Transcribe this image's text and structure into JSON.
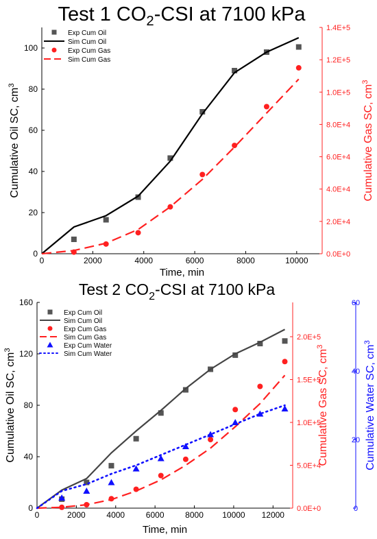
{
  "chart_data": [
    {
      "type": "scatter",
      "title": "Test 1 CO₂-CSI at 7100 kPa",
      "title_parts": {
        "pre": "Test 1 CO",
        "sub": "2",
        "post": "-CSI at 7100 kPa"
      },
      "xlabel": "Time, min",
      "ylabel": "Cumulative Oil SC, cm³",
      "y2label": "Cumulative Gas SC, cm³",
      "xlim": [
        0,
        11000
      ],
      "ylim": [
        0,
        110
      ],
      "y2lim": [
        0,
        140000
      ],
      "x_ticks": [
        "0",
        "2000",
        "4000",
        "6000",
        "8000",
        "10000"
      ],
      "y_ticks": [
        "0",
        "20",
        "40",
        "60",
        "80",
        "100"
      ],
      "y2_ticks": [
        "0.0E+0",
        "2.0E+4",
        "4.0E+4",
        "6.0E+4",
        "8.0E+4",
        "1.0E+5",
        "1.2E+5",
        "1.4E+5"
      ],
      "legend_position": "top-left",
      "colors": {
        "oil": "#000000",
        "exp_oil": "#555555",
        "gas": "#ff2020",
        "y2_axis": "#ff2020"
      },
      "series": [
        {
          "name": "Exp Cum Oil",
          "axis": "left",
          "style": "square-marker",
          "x": [
            1260,
            2520,
            3780,
            5040,
            6300,
            7560,
            8820,
            10080
          ],
          "y": [
            7,
            16.5,
            27.5,
            46.5,
            69,
            89,
            98,
            100.5
          ]
        },
        {
          "name": "Sim Cum Oil",
          "axis": "left",
          "style": "solid-line",
          "x": [
            0,
            1260,
            2520,
            3780,
            5040,
            6300,
            7560,
            8820,
            10080
          ],
          "y": [
            0,
            13,
            18.5,
            28,
            45,
            68,
            88,
            98,
            105
          ]
        },
        {
          "name": "Exp Cum Gas",
          "axis": "right",
          "style": "circle-marker",
          "x": [
            1260,
            2520,
            3780,
            5040,
            6300,
            7560,
            8820,
            10080
          ],
          "y": [
            1000,
            6000,
            13000,
            29000,
            49000,
            67000,
            91000,
            115000
          ]
        },
        {
          "name": "Sim Cum Gas",
          "axis": "right",
          "style": "dashed-line",
          "x": [
            0,
            1260,
            2520,
            3780,
            5040,
            6300,
            7560,
            8820,
            10080
          ],
          "y": [
            0,
            2000,
            6500,
            15000,
            29000,
            46000,
            66000,
            87000,
            108000
          ]
        }
      ]
    },
    {
      "type": "scatter",
      "title": "Test 2 CO₂-CSI at 7100 kPa",
      "title_parts": {
        "pre": "Test 2 CO",
        "sub": "2",
        "post": "-CSI at 7100 kPa"
      },
      "xlabel": "Time, min",
      "ylabel": "Cumulative Oil SC, cm³",
      "y2label": "Cumulative Gas SC, cm³",
      "y3label": "Cumulative Water SC, cm³",
      "xlim": [
        0,
        13000
      ],
      "ylim": [
        0,
        160
      ],
      "y2lim": [
        0,
        240000
      ],
      "y3lim": [
        0,
        60
      ],
      "x_ticks": [
        "0",
        "2000",
        "4000",
        "6000",
        "8000",
        "10000",
        "12000"
      ],
      "y_ticks": [
        "0",
        "40",
        "80",
        "120",
        "160"
      ],
      "y2_ticks": [
        "0.0E+0",
        "5.0E+4",
        "1.0E+5",
        "1.5E+5",
        "2.0E+5"
      ],
      "y3_ticks": [
        "0",
        "20",
        "40",
        "60"
      ],
      "legend_position": "top-left",
      "colors": {
        "oil": "#444444",
        "exp_oil": "#555555",
        "gas": "#ff2020",
        "water": "#1010ff",
        "y2_axis": "#ff2020",
        "y3_axis": "#1010ff"
      },
      "series": [
        {
          "name": "Exp Cum Oil",
          "axis": "left",
          "style": "square-marker",
          "x": [
            1260,
            2520,
            3780,
            5040,
            6300,
            7560,
            8820,
            10080,
            11340,
            12600
          ],
          "y": [
            7,
            20,
            33,
            54,
            74,
            92,
            108,
            119,
            128,
            130
          ]
        },
        {
          "name": "Sim Cum Oil",
          "axis": "left",
          "style": "solid-line",
          "x": [
            0,
            1260,
            2520,
            3780,
            5040,
            6300,
            7560,
            8820,
            10080,
            11340,
            12600
          ],
          "y": [
            0,
            14,
            23,
            43,
            60,
            76,
            93,
            108,
            120,
            129,
            139
          ]
        },
        {
          "name": "Exp Cum Gas",
          "axis": "right",
          "style": "circle-marker",
          "x": [
            1260,
            2520,
            3780,
            5040,
            6300,
            7560,
            8820,
            10080,
            11340,
            12600
          ],
          "y": [
            1000,
            4000,
            11000,
            22000,
            38000,
            57000,
            80000,
            115000,
            142000,
            171000
          ]
        },
        {
          "name": "Sim Cum Gas",
          "axis": "right",
          "style": "dashed-line",
          "x": [
            0,
            1260,
            2520,
            3780,
            5040,
            6300,
            7560,
            8820,
            10080,
            11340,
            12600
          ],
          "y": [
            0,
            1000,
            4000,
            10000,
            20000,
            33000,
            50000,
            70000,
            95000,
            122000,
            155000
          ]
        },
        {
          "name": "Exp Cum Water",
          "axis": "right2",
          "style": "triangle-marker",
          "x": [
            1260,
            2520,
            3780,
            5040,
            6300,
            7560,
            8820,
            10080,
            11340,
            12600
          ],
          "y": [
            3,
            5,
            7.5,
            11.5,
            14.5,
            18,
            21.5,
            25,
            27.5,
            29
          ]
        },
        {
          "name": "Sim Cum Water",
          "axis": "right2",
          "style": "dotted-line",
          "x": [
            0,
            1260,
            2520,
            3780,
            5040,
            6300,
            7560,
            8820,
            10080,
            11340,
            12600
          ],
          "y": [
            0,
            5,
            7,
            10,
            12.5,
            15.5,
            18.5,
            21.5,
            24.5,
            27.5,
            30
          ]
        }
      ]
    }
  ]
}
